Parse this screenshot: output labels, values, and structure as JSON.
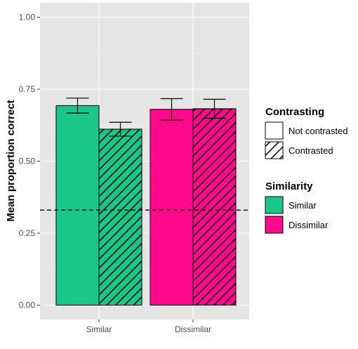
{
  "chart_data": {
    "type": "bar",
    "categories": [
      "Similar",
      "Dissimilar"
    ],
    "ylabel": "Mean proportion correct",
    "xlabel": "",
    "ylim": [
      0,
      1.0
    ],
    "yticks": [
      "0.00",
      "0.25",
      "0.50",
      "0.75",
      "1.00"
    ],
    "grid": true,
    "reference_line": {
      "y": 0.33,
      "style": "dashed"
    },
    "series": [
      {
        "name": "Not contrasted",
        "pattern": "none",
        "values": [
          0.693,
          0.68
        ],
        "error_low": [
          0.667,
          0.642
        ],
        "error_high": [
          0.719,
          0.717
        ]
      },
      {
        "name": "Contrasted",
        "pattern": "hatched",
        "values": [
          0.611,
          0.682
        ],
        "error_low": [
          0.587,
          0.649
        ],
        "error_high": [
          0.635,
          0.715
        ]
      }
    ],
    "fill_by_category": {
      "Similar": "#1bc68b",
      "Dissimilar": "#ff0a8c"
    },
    "legend": {
      "placement": "right",
      "groups": [
        {
          "title": "Contrasting",
          "items": [
            {
              "label": "Not contrasted",
              "pattern": "none"
            },
            {
              "label": "Contrasted",
              "pattern": "hatched"
            }
          ]
        },
        {
          "title": "Similarity",
          "items": [
            {
              "label": "Similar",
              "color": "#1bc68b"
            },
            {
              "label": "Dissimilar",
              "color": "#ff0a8c"
            }
          ]
        }
      ]
    }
  }
}
